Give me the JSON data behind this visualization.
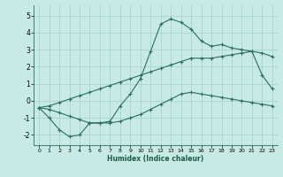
{
  "xlabel": "Humidex (Indice chaleur)",
  "bg_color": "#c8eae4",
  "grid_color": "#a8d4cc",
  "line_color": "#2a6e62",
  "xlim": [
    -0.5,
    23.5
  ],
  "ylim": [
    -2.6,
    5.6
  ],
  "yticks": [
    -2,
    -1,
    0,
    1,
    2,
    3,
    4,
    5
  ],
  "xticks": [
    0,
    1,
    2,
    3,
    4,
    5,
    6,
    7,
    8,
    9,
    10,
    11,
    12,
    13,
    14,
    15,
    16,
    17,
    18,
    19,
    20,
    21,
    22,
    23
  ],
  "line1_x": [
    0,
    1,
    2,
    3,
    4,
    5,
    6,
    7,
    8,
    9,
    10,
    11,
    12,
    13,
    14,
    15,
    16,
    17,
    18,
    19,
    20,
    21,
    22,
    23
  ],
  "line1_y": [
    -0.4,
    -1.0,
    -1.7,
    -2.1,
    -2.0,
    -1.3,
    -1.3,
    -1.2,
    -0.3,
    0.4,
    1.3,
    2.9,
    4.5,
    4.8,
    4.6,
    4.2,
    3.5,
    3.2,
    3.3,
    3.1,
    3.0,
    2.9,
    1.5,
    0.7
  ],
  "line2_x": [
    0,
    1,
    2,
    3,
    4,
    5,
    6,
    7,
    8,
    9,
    10,
    11,
    12,
    13,
    14,
    15,
    16,
    17,
    18,
    19,
    20,
    21,
    22,
    23
  ],
  "line2_y": [
    -0.4,
    -0.3,
    -0.1,
    0.1,
    0.3,
    0.5,
    0.7,
    0.9,
    1.1,
    1.3,
    1.5,
    1.7,
    1.9,
    2.1,
    2.3,
    2.5,
    2.5,
    2.5,
    2.6,
    2.7,
    2.8,
    2.9,
    2.8,
    2.6
  ],
  "line3_x": [
    0,
    1,
    2,
    3,
    4,
    5,
    6,
    7,
    8,
    9,
    10,
    11,
    12,
    13,
    14,
    15,
    16,
    17,
    18,
    19,
    20,
    21,
    22,
    23
  ],
  "line3_y": [
    -0.4,
    -0.5,
    -0.7,
    -0.9,
    -1.1,
    -1.3,
    -1.3,
    -1.3,
    -1.2,
    -1.0,
    -0.8,
    -0.5,
    -0.2,
    0.1,
    0.4,
    0.5,
    0.4,
    0.3,
    0.2,
    0.1,
    0.0,
    -0.1,
    -0.2,
    -0.3
  ]
}
